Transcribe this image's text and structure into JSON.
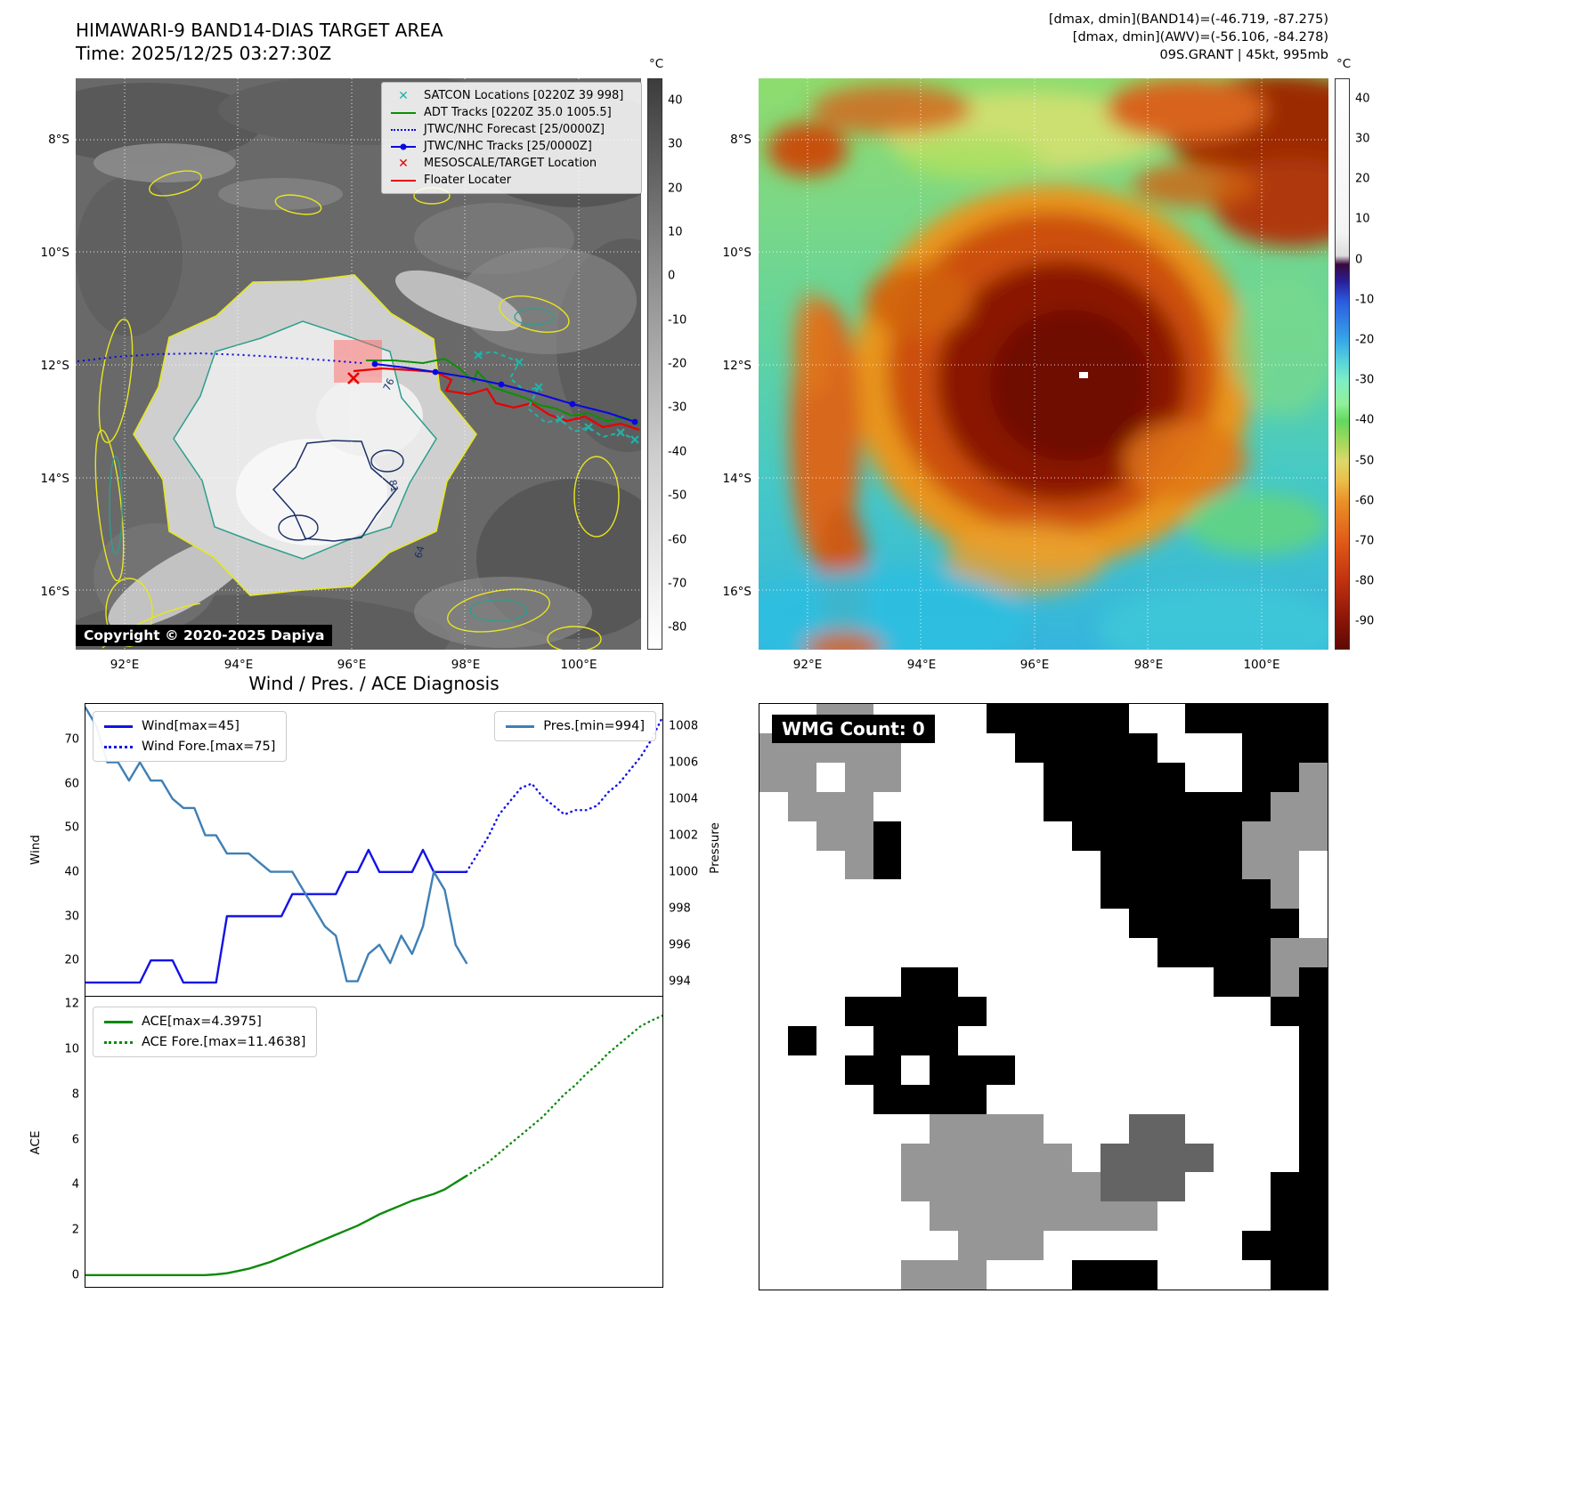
{
  "header": {
    "line1": "[dmax, dmin](BAND14)=(-46.719, -87.275)",
    "line2": "[dmax, dmin](AWV)=(-56.106, -84.278)",
    "line3": "09S.GRANT | 45kt, 995mb"
  },
  "map_axes": {
    "lat": [
      "8°S",
      "10°S",
      "12°S",
      "14°S",
      "16°S"
    ],
    "lon": [
      "92°E",
      "94°E",
      "96°E",
      "98°E",
      "100°E"
    ]
  },
  "panels": {
    "band14": {
      "title": "HIMAWARI-9 BAND14-DIAS TARGET AREA",
      "subtitle": "Time: 2025/12/25 03:27:30Z",
      "copyright": "Copyright © 2020-2025 Dapiya",
      "colorbar": {
        "unit": "°C",
        "range": [
          45,
          -85
        ],
        "ticks": [
          40,
          30,
          20,
          10,
          0,
          -10,
          -20,
          -30,
          -40,
          -50,
          -60,
          -70,
          -80
        ]
      },
      "legend": [
        {
          "label": "SATCON Locations [0220Z 39 998]",
          "style": "teal-x"
        },
        {
          "label": "ADT Tracks [0220Z 35.0 1005.5]",
          "style": "green-line"
        },
        {
          "label": "JTWC/NHC Forecast [25/0000Z]",
          "style": "blue-dotted"
        },
        {
          "label": "JTWC/NHC Tracks [25/0000Z]",
          "style": "blue-line-dot"
        },
        {
          "label": "MESOSCALE/TARGET Location",
          "style": "red-x"
        },
        {
          "label": "Floater Locater",
          "style": "red-line"
        }
      ],
      "contour_labels": [
        "76",
        "81",
        "64"
      ],
      "track_colors": {
        "forecast": "#0808e0",
        "jtwc": "#0808e0",
        "adt": "#0a9000",
        "satcon": "#20b2aa",
        "floater": "#e80000",
        "target": "#e80000"
      }
    },
    "awv": {
      "colorbar": {
        "unit": "°C",
        "range": [
          45,
          -97
        ],
        "ticks": [
          40,
          30,
          20,
          10,
          0,
          -10,
          -20,
          -30,
          -40,
          -50,
          -60,
          -70,
          -80,
          -90
        ]
      }
    },
    "diagnosis": {
      "title": "Wind / Pres. / ACE Diagnosis"
    },
    "wmg": {
      "label": "WMG Count: 0",
      "palette": {
        "0": "#ffffff",
        "1": "#969696",
        "2": "#000000",
        "3": "#646464"
      },
      "grid": [
        "00110000222220022222",
        "11111000022222000222",
        "11011000002222200221",
        "01110000002222222211",
        "00112000000222222111",
        "00012000000022222110",
        "00000000000022222210",
        "00000000000002222220",
        "00000000000000222211",
        "00000220000000002212",
        "00022222000000000022",
        "02002220000000000002",
        "00022022200000000002",
        "00002222000000000002",
        "00000011110003300002",
        "00000111111033330002",
        "00000111111133300022",
        "00000011111111000022",
        "00000001110000000222",
        "00000111000222000022"
      ]
    }
  },
  "chart_data": [
    {
      "type": "line",
      "title": "Wind / Pres. / ACE Diagnosis",
      "x_range": [
        0,
        53
      ],
      "y_left_label": "Wind",
      "y_right_label": "Pressure",
      "y_left_ticks": [
        20,
        30,
        40,
        50,
        60,
        70
      ],
      "y_right_ticks": [
        994,
        996,
        998,
        1000,
        1002,
        1004,
        1006,
        1008
      ],
      "y_left_range": [
        12,
        78
      ],
      "y_right_range": [
        993.2,
        1009.2
      ],
      "legend_left": [
        "Wind[max=45]",
        "Wind Fore.[max=75]"
      ],
      "legend_right": [
        "Pres.[min=994]"
      ],
      "series": [
        {
          "name": "Wind[max=45]",
          "axis": "left",
          "style": "solid",
          "color": "#1212e6",
          "x_start": 0,
          "values": [
            15,
            15,
            15,
            15,
            15,
            15,
            20,
            20,
            20,
            15,
            15,
            15,
            15,
            30,
            30,
            30,
            30,
            30,
            30,
            35,
            35,
            35,
            35,
            35,
            40,
            40,
            45,
            40,
            40,
            40,
            40,
            45,
            40,
            40,
            40,
            40
          ]
        },
        {
          "name": "Wind Fore.[max=75]",
          "axis": "left",
          "style": "dotted",
          "color": "#1212e6",
          "x_start": 35,
          "values": [
            40,
            44,
            48,
            53,
            56,
            59,
            60,
            57,
            55,
            53,
            54,
            54,
            55,
            58,
            60,
            63,
            66,
            70,
            75
          ]
        },
        {
          "name": "Pres.[min=994]",
          "axis": "right",
          "style": "solid",
          "color": "#3f7fb5",
          "x_start": 0,
          "values": [
            1009,
            1008,
            1006,
            1006,
            1005,
            1006,
            1005,
            1005,
            1004,
            1003.5,
            1003.5,
            1002,
            1002,
            1001,
            1001,
            1001,
            1000.5,
            1000,
            1000,
            1000,
            999,
            998,
            997,
            996.5,
            994,
            994,
            995.5,
            996,
            995,
            996.5,
            995.5,
            997,
            1000,
            999,
            996,
            995
          ]
        }
      ]
    },
    {
      "type": "line",
      "x_range": [
        0,
        53
      ],
      "y_left_label": "ACE",
      "y_left_ticks": [
        0,
        2,
        4,
        6,
        8,
        10,
        12
      ],
      "y_left_range": [
        -0.5,
        12.3
      ],
      "legend_left": [
        "ACE[max=4.3975]",
        "ACE Fore.[max=11.4638]"
      ],
      "series": [
        {
          "name": "ACE[max=4.3975]",
          "axis": "left",
          "style": "solid",
          "color": "#0c8a0c",
          "x_start": 0,
          "values": [
            0.02,
            0.02,
            0.02,
            0.02,
            0.02,
            0.02,
            0.02,
            0.02,
            0.02,
            0.02,
            0.02,
            0.02,
            0.05,
            0.1,
            0.2,
            0.3,
            0.45,
            0.6,
            0.8,
            1.0,
            1.2,
            1.4,
            1.6,
            1.8,
            2.0,
            2.2,
            2.45,
            2.7,
            2.9,
            3.1,
            3.3,
            3.45,
            3.6,
            3.8,
            4.1,
            4.3975
          ]
        },
        {
          "name": "ACE Fore.[max=11.4638]",
          "axis": "left",
          "style": "dotted",
          "color": "#0c8a0c",
          "x_start": 35,
          "values": [
            4.3975,
            4.7,
            5.0,
            5.4,
            5.8,
            6.2,
            6.6,
            7.0,
            7.5,
            8.0,
            8.4,
            8.9,
            9.3,
            9.8,
            10.2,
            10.6,
            11.0,
            11.25,
            11.4638
          ]
        }
      ]
    }
  ]
}
